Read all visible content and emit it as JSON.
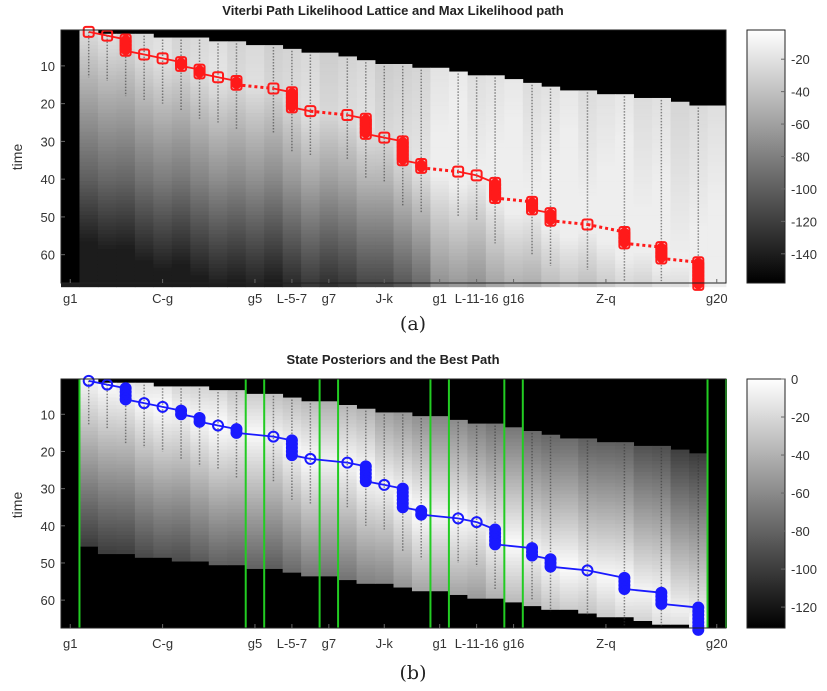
{
  "chart_data": [
    {
      "type": "heatmap",
      "title": "Viterbi Path Likelihood Lattice and Max Likelihood path",
      "panel_label": "(a)",
      "ylabel": "time",
      "xlabel": "",
      "ylim": [
        0.5,
        67.5
      ],
      "y_ticks": [
        10,
        20,
        30,
        40,
        50,
        60
      ],
      "x_tick_labels": [
        {
          "label": "g1",
          "state": 0
        },
        {
          "label": "C-g",
          "state": 5
        },
        {
          "label": "g5",
          "state": 10
        },
        {
          "label": "L-5-7",
          "state": 12
        },
        {
          "label": "g7",
          "state": 14
        },
        {
          "label": "J-k",
          "state": 17
        },
        {
          "label": "g1",
          "state": 20
        },
        {
          "label": "L-11-16",
          "state": 22
        },
        {
          "label": "g16",
          "state": 24
        },
        {
          "label": "Z-q",
          "state": 29
        },
        {
          "label": "g20",
          "state": 35
        }
      ],
      "num_states": 36,
      "colorbar": {
        "range": [
          -158,
          -2
        ],
        "ticks": [
          -20,
          -40,
          -60,
          -80,
          -100,
          -120,
          -140
        ],
        "colormap": "gray"
      },
      "lattice_start_time": [
        68,
        1,
        2,
        2,
        2,
        3,
        3,
        3,
        4,
        4,
        5,
        5,
        6,
        7,
        7,
        8,
        9,
        10,
        10,
        11,
        11,
        12,
        13,
        13,
        14,
        15,
        16,
        17,
        17,
        18,
        18,
        19,
        19,
        20,
        21,
        21
      ],
      "path_color": "#ff1a1a",
      "path_marker": "square",
      "path": [
        {
          "state": 1,
          "t": [
            1,
            1
          ]
        },
        {
          "state": 2,
          "t": [
            2,
            2
          ]
        },
        {
          "state": 3,
          "t": [
            3,
            6
          ]
        },
        {
          "state": 4,
          "t": [
            7,
            7
          ]
        },
        {
          "state": 5,
          "t": [
            8,
            8
          ]
        },
        {
          "state": 6,
          "t": [
            9,
            10
          ]
        },
        {
          "state": 7,
          "t": [
            11,
            12
          ]
        },
        {
          "state": 8,
          "t": [
            13,
            13
          ]
        },
        {
          "state": 9,
          "t": [
            14,
            15
          ]
        },
        {
          "state": 11,
          "t": [
            16,
            16
          ]
        },
        {
          "state": 12,
          "t": [
            17,
            21
          ]
        },
        {
          "state": 13,
          "t": [
            22,
            22
          ]
        },
        {
          "state": 15,
          "t": [
            23,
            23
          ]
        },
        {
          "state": 16,
          "t": [
            24,
            28
          ]
        },
        {
          "state": 17,
          "t": [
            29,
            29
          ]
        },
        {
          "state": 18,
          "t": [
            30,
            35
          ]
        },
        {
          "state": 19,
          "t": [
            36,
            37
          ]
        },
        {
          "state": 21,
          "t": [
            38,
            38
          ]
        },
        {
          "state": 22,
          "t": [
            39,
            39
          ]
        },
        {
          "state": 23,
          "t": [
            41,
            45
          ]
        },
        {
          "state": 25,
          "t": [
            46,
            48
          ]
        },
        {
          "state": 26,
          "t": [
            49,
            51
          ]
        },
        {
          "state": 28,
          "t": [
            52,
            52
          ]
        },
        {
          "state": 30,
          "t": [
            54,
            57
          ]
        },
        {
          "state": 32,
          "t": [
            58,
            61
          ]
        },
        {
          "state": 34,
          "t": [
            62,
            68
          ]
        }
      ],
      "boundary_lines": []
    },
    {
      "type": "heatmap",
      "title": "State Posteriors and the Best Path",
      "panel_label": "(b)",
      "ylabel": "time",
      "xlabel": "",
      "ylim": [
        0.5,
        67.5
      ],
      "y_ticks": [
        10,
        20,
        30,
        40,
        50,
        60
      ],
      "x_tick_labels": [
        {
          "label": "g1",
          "state": 0
        },
        {
          "label": "C-g",
          "state": 5
        },
        {
          "label": "g5",
          "state": 10
        },
        {
          "label": "L-5-7",
          "state": 12
        },
        {
          "label": "g7",
          "state": 14
        },
        {
          "label": "J-k",
          "state": 17
        },
        {
          "label": "g1",
          "state": 20
        },
        {
          "label": "L-11-16",
          "state": 22
        },
        {
          "label": "g16",
          "state": 24
        },
        {
          "label": "Z-q",
          "state": 29
        },
        {
          "label": "g20",
          "state": 35
        }
      ],
      "num_states": 36,
      "colorbar": {
        "range": [
          -131,
          0
        ],
        "ticks": [
          0,
          -20,
          -40,
          -60,
          -80,
          -100,
          -120
        ],
        "colormap": "gray"
      },
      "lattice_start_time": [
        68,
        1,
        2,
        2,
        2,
        3,
        3,
        3,
        4,
        4,
        5,
        5,
        6,
        7,
        7,
        8,
        9,
        10,
        10,
        11,
        11,
        12,
        13,
        13,
        14,
        15,
        16,
        17,
        17,
        18,
        18,
        19,
        19,
        20,
        21,
        68
      ],
      "lattice_end_time": [
        0,
        45,
        47,
        47,
        48,
        48,
        49,
        49,
        50,
        50,
        51,
        51,
        52,
        53,
        53,
        54,
        55,
        55,
        56,
        57,
        57,
        58,
        59,
        59,
        60,
        61,
        62,
        62,
        63,
        64,
        64,
        65,
        66,
        66,
        67,
        0
      ],
      "path_color": "#1a1aff",
      "path_marker": "circle",
      "path": [
        {
          "state": 1,
          "t": [
            1,
            1
          ]
        },
        {
          "state": 2,
          "t": [
            2,
            2
          ]
        },
        {
          "state": 3,
          "t": [
            3,
            6
          ]
        },
        {
          "state": 4,
          "t": [
            7,
            7
          ]
        },
        {
          "state": 5,
          "t": [
            8,
            8
          ]
        },
        {
          "state": 6,
          "t": [
            9,
            10
          ]
        },
        {
          "state": 7,
          "t": [
            11,
            12
          ]
        },
        {
          "state": 8,
          "t": [
            13,
            13
          ]
        },
        {
          "state": 9,
          "t": [
            14,
            15
          ]
        },
        {
          "state": 11,
          "t": [
            16,
            16
          ]
        },
        {
          "state": 12,
          "t": [
            17,
            21
          ]
        },
        {
          "state": 13,
          "t": [
            22,
            22
          ]
        },
        {
          "state": 15,
          "t": [
            23,
            23
          ]
        },
        {
          "state": 16,
          "t": [
            24,
            28
          ]
        },
        {
          "state": 17,
          "t": [
            29,
            29
          ]
        },
        {
          "state": 18,
          "t": [
            30,
            35
          ]
        },
        {
          "state": 19,
          "t": [
            36,
            37
          ]
        },
        {
          "state": 21,
          "t": [
            38,
            38
          ]
        },
        {
          "state": 22,
          "t": [
            39,
            39
          ]
        },
        {
          "state": 23,
          "t": [
            41,
            45
          ]
        },
        {
          "state": 25,
          "t": [
            46,
            48
          ]
        },
        {
          "state": 26,
          "t": [
            49,
            51
          ]
        },
        {
          "state": 28,
          "t": [
            52,
            52
          ]
        },
        {
          "state": 30,
          "t": [
            54,
            57
          ]
        },
        {
          "state": 32,
          "t": [
            58,
            61
          ]
        },
        {
          "state": 34,
          "t": [
            62,
            68
          ]
        }
      ],
      "boundary_lines": [
        1,
        10,
        11,
        14,
        15,
        20,
        21,
        24,
        25,
        35,
        36
      ],
      "boundary_color": "#22cc22"
    }
  ]
}
